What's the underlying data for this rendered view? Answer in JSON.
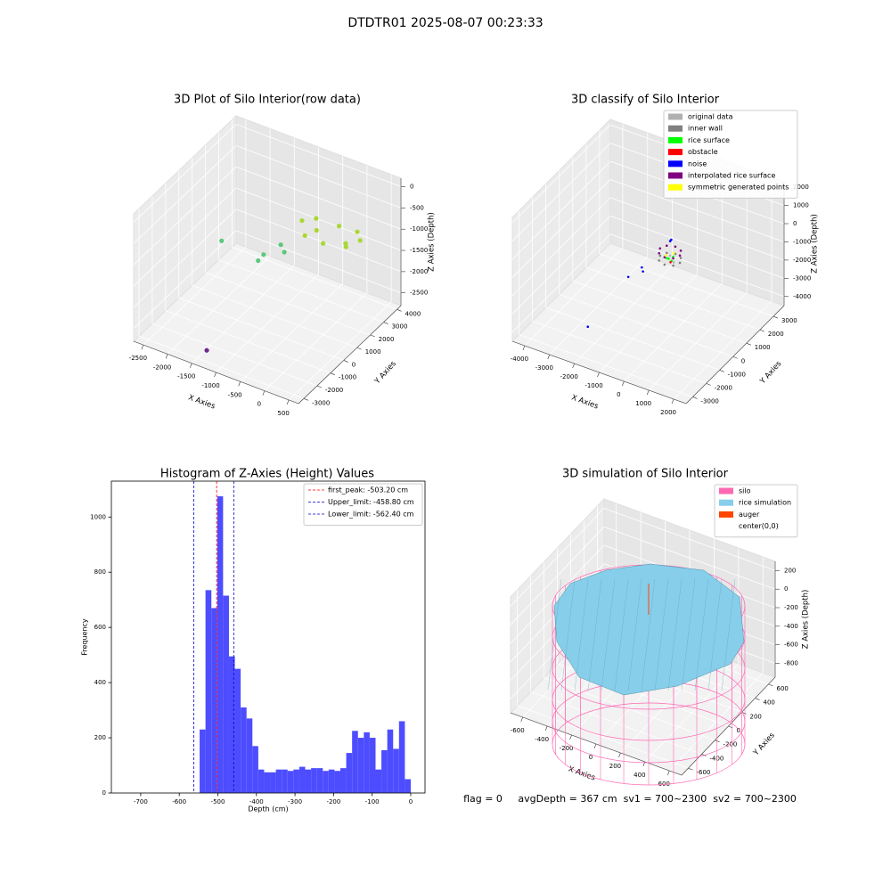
{
  "title": "DTDTR01 2025-08-07 00:23:33",
  "footer": "flag = 0     avgDepth = 367 cm  sv1 = 700~2300  sv2 = 700~2300",
  "chart_data": [
    {
      "type": "scatter3d",
      "title": "3D Plot of Silo Interior(row data)",
      "xlabel": "X Axies",
      "ylabel": "Y Axies",
      "zlabel": "Z Axies (Depth)",
      "xlim": [
        -2700,
        700
      ],
      "ylim": [
        -3400,
        4300
      ],
      "zlim": [
        -2800,
        200
      ],
      "xticks": [
        -2500,
        -2000,
        -1500,
        -1000,
        -500,
        0,
        500
      ],
      "yticks": [
        -3000,
        -2000,
        -1000,
        0,
        1000,
        2000,
        3000,
        4000
      ],
      "zticks": [
        -2500,
        -2000,
        -1500,
        -1000,
        -500,
        0
      ],
      "series": [
        {
          "color": "#a8d832",
          "x": [
            600,
            -600,
            0,
            0,
            424,
            -424,
            424,
            -424,
            300,
            -300
          ],
          "y": [
            1600,
            1600,
            2200,
            1000,
            2024,
            1176,
            1176,
            2024,
            1600,
            1600
          ],
          "z": [
            -500,
            -550,
            -600,
            -650,
            -500,
            -700,
            -600,
            -550,
            -700,
            -650
          ]
        },
        {
          "color": "#5cc87a",
          "x": [
            -1252,
            -1200,
            -900,
            -800,
            -1900
          ],
          "y": [
            681,
            900,
            1100,
            1000,
            300
          ],
          "z": [
            -1500,
            -1400,
            -1100,
            -1200,
            -1200
          ]
        },
        {
          "color": "#6a2c8a",
          "x": [
            -1282
          ],
          "y": [
            -3073
          ],
          "z": [
            -2500
          ]
        }
      ]
    },
    {
      "type": "scatter3d",
      "title": "3D classify of Silo Interior",
      "xlabel": "X Axies",
      "ylabel": "Y Axies",
      "zlabel": "Z Axies (Depth)",
      "xlim": [
        -4500,
        2500
      ],
      "ylim": [
        -3500,
        3800
      ],
      "zlim": [
        -4500,
        2300
      ],
      "xticks": [
        -4000,
        -3000,
        -2000,
        -1000,
        0,
        1000,
        2000
      ],
      "yticks": [
        -3000,
        -2000,
        -1000,
        0,
        1000,
        2000,
        3000
      ],
      "zticks": [
        -4000,
        -3000,
        -2000,
        -1000,
        0,
        1000,
        2000
      ],
      "legend": "upper right",
      "series": [
        {
          "name": "original data",
          "color": "#b0b0b0",
          "x": [
            -800,
            -600
          ],
          "y": [
            1400,
            1300
          ],
          "z": [
            -1600,
            -1800
          ]
        },
        {
          "name": "inner wall",
          "color": "#808080",
          "x": [
            -400,
            -1200,
            -800,
            -800,
            -517,
            -1083,
            -517,
            -1083
          ],
          "y": [
            1400,
            1400,
            1800,
            1000,
            1683,
            1117,
            1117,
            1683
          ],
          "z": [
            -1800,
            -1800,
            -1800,
            -1800,
            -1800,
            -1800,
            -1800,
            -1800
          ]
        },
        {
          "name": "rice surface",
          "color": "#00ff00",
          "x": [
            -800,
            -700,
            -900,
            -650
          ],
          "y": [
            1300,
            1450,
            1350,
            1250
          ],
          "z": [
            -1700,
            -1650,
            -1750,
            -1700
          ]
        },
        {
          "name": "obstacle",
          "color": "#ff0000",
          "x": [
            -750
          ],
          "y": [
            1350
          ],
          "z": [
            -1900
          ]
        },
        {
          "name": "noise",
          "color": "#0000ff",
          "x": [
            -2421,
            -1889,
            -1500,
            -1400,
            -900,
            -800
          ],
          "y": [
            -1719,
            311,
            600,
            500,
            1600,
            1500
          ],
          "z": [
            -4000,
            -2500,
            -2000,
            -2100,
            -1000,
            -800
          ]
        },
        {
          "name": "interpolated rice surface",
          "color": "#800080",
          "x": [
            -400,
            -1200,
            -800,
            -800,
            -517,
            -1083,
            -517,
            -1083
          ],
          "y": [
            1400,
            1400,
            1800,
            1000,
            1683,
            1117,
            1117,
            1683
          ],
          "z": [
            -1400,
            -1400,
            -1400,
            -1400,
            -1400,
            -1400,
            -1400,
            -1400
          ]
        },
        {
          "name": "symmetric generated points",
          "color": "#ffff00",
          "x": [
            -700,
            -900
          ],
          "y": [
            1500,
            1300
          ],
          "z": [
            -1500,
            -1550
          ]
        }
      ]
    },
    {
      "type": "histogram",
      "title": "Histogram of Z-Axies (Height) Values",
      "xlabel": "Depth (cm)",
      "ylabel": "Frequency",
      "color": "#4d4dff",
      "bins": [
        -547.2,
        -532,
        -516.8,
        -501.6,
        -486.4,
        -471.2,
        -456,
        -440.8,
        -425.6,
        -410.4,
        -395.2,
        -380,
        -364.8,
        -349.6,
        -334.4,
        -319.2,
        -304,
        -288.8,
        -273.6,
        -258.4,
        -243.2,
        -228,
        -212.8,
        -197.6,
        -182.4,
        -167.2,
        -152,
        -136.8,
        -121.6,
        -106.4,
        -91.2,
        -76,
        -60.8,
        -45.6,
        -30.4,
        -15.2,
        0
      ],
      "values": [
        230,
        735,
        670,
        1075,
        715,
        495,
        450,
        310,
        270,
        170,
        85,
        75,
        75,
        85,
        85,
        80,
        85,
        95,
        85,
        90,
        90,
        80,
        85,
        80,
        90,
        145,
        225,
        200,
        220,
        200,
        85,
        155,
        230,
        160,
        260,
        50
      ],
      "xlim": [
        -776,
        37
      ],
      "ylim": [
        0,
        1130
      ],
      "xticks": [
        -700,
        -600,
        -500,
        -400,
        -300,
        -200,
        -100,
        0
      ],
      "yticks": [
        0,
        200,
        400,
        600,
        800,
        1000
      ],
      "legend": "upper right",
      "lines": [
        {
          "name": "first_peak: -503.20 cm",
          "value": -503.2,
          "color": "#ff0000"
        },
        {
          "name": "Upper_limit: -458.80 cm",
          "value": -458.8,
          "color": "#0000cc"
        },
        {
          "name": "Lower_limit: -562.40 cm",
          "value": -562.4,
          "color": "#0000cc"
        }
      ]
    },
    {
      "type": "surface3d",
      "title": "3D simulation of Silo Interior",
      "xlabel": "X Axies",
      "ylabel": "Y Axies",
      "zlabel": "Z Axies (Depth)",
      "xlim": [
        -700,
        700
      ],
      "ylim": [
        -700,
        700
      ],
      "zlim": [
        -950,
        300
      ],
      "xticks": [
        -600,
        -400,
        -200,
        0,
        200,
        400,
        600
      ],
      "yticks": [
        -600,
        -400,
        -200,
        0,
        200,
        400,
        600
      ],
      "zticks": [
        -800,
        -600,
        -400,
        -200,
        0,
        200
      ],
      "legend": "upper right",
      "series": [
        {
          "name": "silo",
          "color": "#ff69b4"
        },
        {
          "name": "rice simulation",
          "color": "#87ceeb"
        },
        {
          "name": "auger",
          "color": "#ff4500"
        },
        {
          "name": "center(0,0)",
          "color": "#ffffff"
        }
      ]
    }
  ]
}
